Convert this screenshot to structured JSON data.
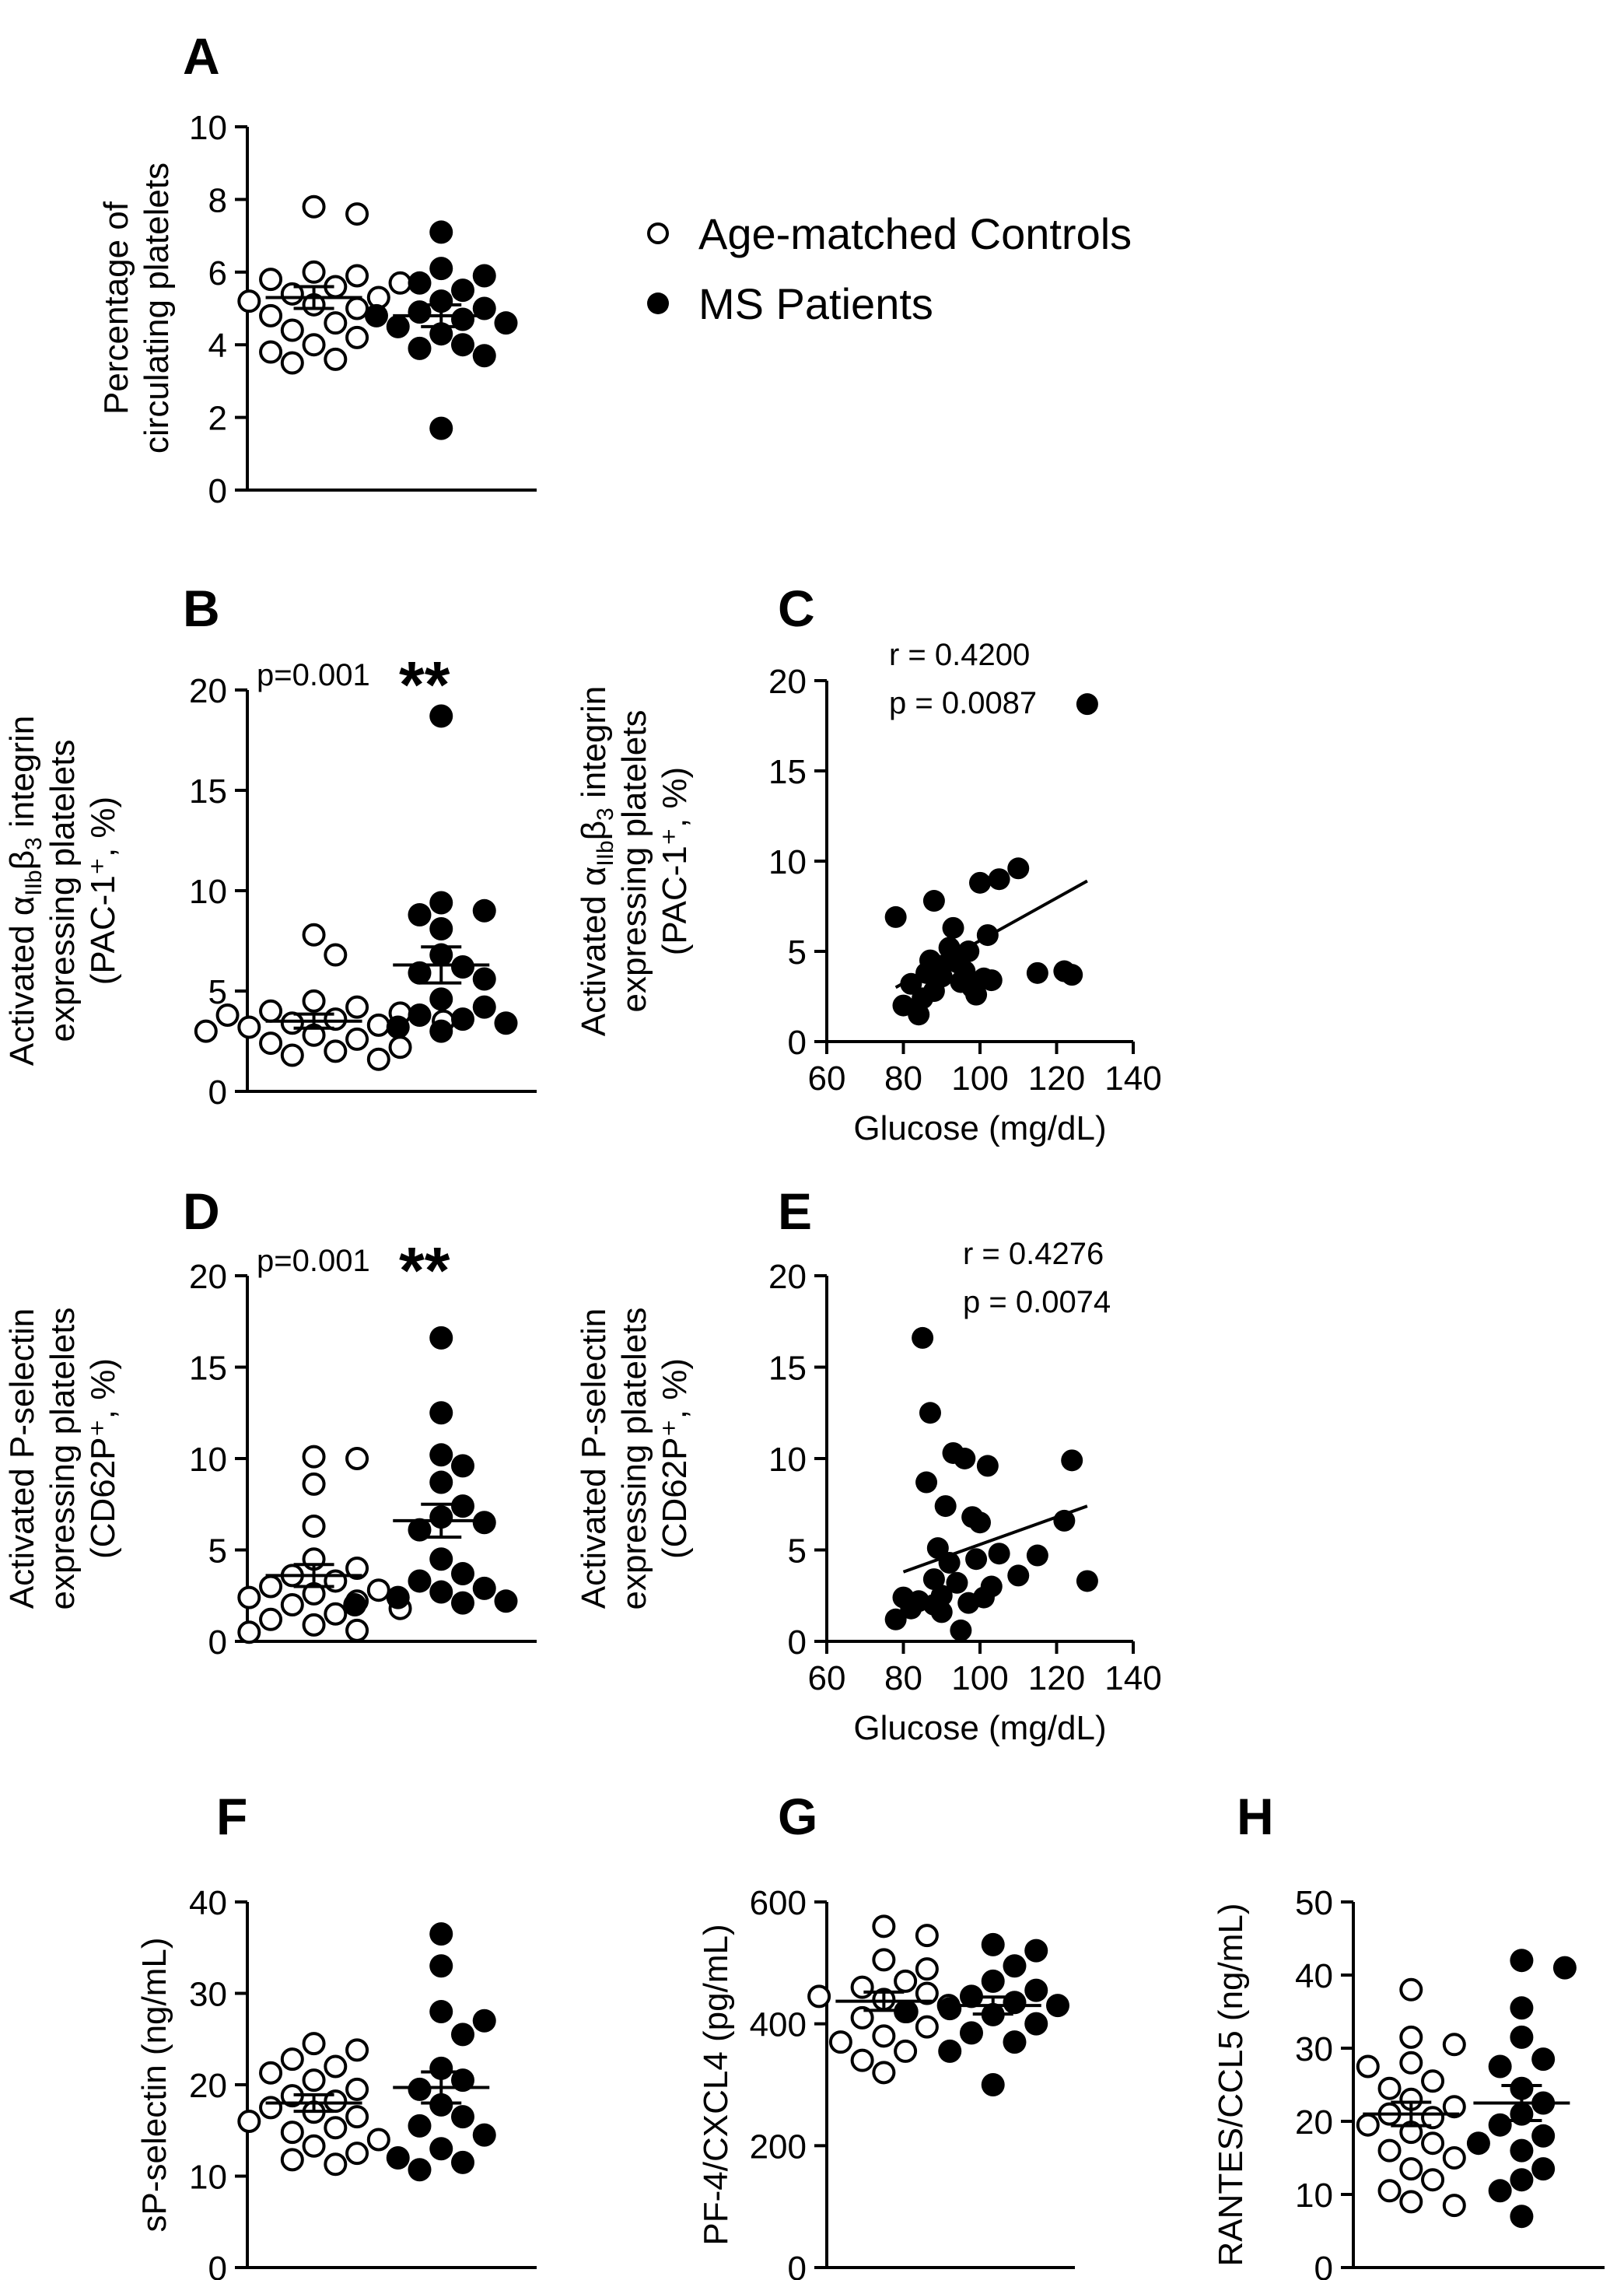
{
  "legend": {
    "controls": "Age-matched Controls",
    "patients": "MS Patients"
  },
  "colors": {
    "ink": "#000000",
    "open_fill": "#ffffff"
  },
  "chart_data": [
    {
      "id": "A",
      "letter": "A",
      "type": "scatter",
      "ylabel_lines": [
        "Percentage of",
        "circulating platelets"
      ],
      "ylim": [
        0,
        10
      ],
      "yticks": [
        "0",
        "2",
        "4",
        "6",
        "8",
        "10"
      ],
      "ytick_values": [
        0,
        2,
        4,
        6,
        8,
        10
      ],
      "series": [
        {
          "name": "Age-matched Controls",
          "marker": "open",
          "values": [
            7.8,
            7.6,
            6.0,
            5.9,
            5.8,
            5.7,
            5.6,
            5.4,
            5.3,
            5.2,
            5.1,
            5.0,
            4.8,
            4.6,
            4.4,
            4.2,
            4.0,
            3.8,
            3.6,
            3.5
          ],
          "mean": 5.3,
          "sem": 0.3
        },
        {
          "name": "MS Patients",
          "marker": "filled",
          "values": [
            7.1,
            6.1,
            5.9,
            5.7,
            5.5,
            5.2,
            5.0,
            4.9,
            4.8,
            4.7,
            4.6,
            4.5,
            4.3,
            4.0,
            3.9,
            3.7,
            1.7
          ],
          "mean": 4.8,
          "sem": 0.3
        }
      ]
    },
    {
      "id": "B",
      "letter": "B",
      "type": "scatter",
      "ylabel_lines": [
        "Activated αIIbβ3 integrin",
        "expressing platelets",
        "(PAC-1⁺, %)"
      ],
      "ylim": [
        0,
        20
      ],
      "yticks": [
        "0",
        "5",
        "10",
        "15",
        "20"
      ],
      "ytick_values": [
        0,
        5,
        10,
        15,
        20
      ],
      "pvalue": "p=0.001",
      "stars": "**",
      "series": [
        {
          "name": "Age-matched Controls",
          "marker": "open",
          "values": [
            7.8,
            6.8,
            4.5,
            4.2,
            4.0,
            3.9,
            3.8,
            3.6,
            3.5,
            3.4,
            3.3,
            3.2,
            3.0,
            2.8,
            2.6,
            2.4,
            2.2,
            2.0,
            1.8,
            1.6
          ],
          "mean": 3.5,
          "sem": 0.35
        },
        {
          "name": "MS Patients",
          "marker": "filled",
          "values": [
            18.7,
            9.4,
            9.0,
            8.8,
            8.1,
            6.8,
            6.2,
            5.9,
            5.6,
            4.6,
            4.2,
            3.8,
            3.6,
            3.4,
            3.2,
            3.0
          ],
          "mean": 6.3,
          "sem": 0.9
        }
      ]
    },
    {
      "id": "C",
      "letter": "C",
      "type": "scatter-fit",
      "ylabel_lines": [
        "Activated αIIbβ3 integrin",
        "expressing platelets",
        "(PAC-1⁺, %)"
      ],
      "xlabel": "Glucose (mg/dL)",
      "xlim": [
        60,
        140
      ],
      "xticks": [
        "60",
        "80",
        "100",
        "120",
        "140"
      ],
      "xtick_values": [
        60,
        80,
        100,
        120,
        140
      ],
      "ylim": [
        0,
        20
      ],
      "yticks": [
        "0",
        "5",
        "10",
        "15",
        "20"
      ],
      "ytick_values": [
        0,
        5,
        10,
        15,
        20
      ],
      "r_text": "r = 0.4200",
      "p_text": "p = 0.0087",
      "fit": {
        "x": [
          78,
          128
        ],
        "y": [
          3.0,
          8.9
        ]
      },
      "points": {
        "x": [
          78,
          80,
          82,
          84,
          85,
          86,
          87,
          88,
          88,
          90,
          90,
          92,
          93,
          94,
          95,
          96,
          97,
          98,
          99,
          100,
          101,
          102,
          103,
          105,
          110,
          115,
          122,
          124,
          128
        ],
        "y": [
          6.9,
          2.0,
          3.2,
          1.5,
          2.4,
          3.8,
          4.5,
          7.8,
          2.8,
          4.2,
          3.6,
          5.2,
          6.3,
          4.4,
          3.3,
          3.9,
          5.0,
          3.0,
          2.6,
          8.8,
          3.5,
          5.9,
          3.4,
          9.0,
          9.6,
          3.8,
          3.9,
          3.7,
          18.7
        ]
      }
    },
    {
      "id": "D",
      "letter": "D",
      "type": "scatter",
      "ylabel_lines": [
        "Activated P-selectin",
        "expressing platelets",
        "(CD62P⁺, %)"
      ],
      "ylim": [
        0,
        20
      ],
      "yticks": [
        "0",
        "5",
        "10",
        "15",
        "20"
      ],
      "ytick_values": [
        0,
        5,
        10,
        15,
        20
      ],
      "pvalue": "p=0.001",
      "stars": "**",
      "series": [
        {
          "name": "Age-matched Controls",
          "marker": "open",
          "values": [
            10.1,
            10.0,
            8.6,
            6.3,
            4.5,
            4.0,
            3.6,
            3.3,
            3.0,
            2.8,
            2.6,
            2.4,
            2.2,
            2.0,
            1.8,
            1.5,
            1.2,
            0.9,
            0.6,
            0.5
          ],
          "mean": 3.6,
          "sem": 0.6
        },
        {
          "name": "MS Patients",
          "marker": "filled",
          "values": [
            16.6,
            12.5,
            10.2,
            9.6,
            8.7,
            7.4,
            6.8,
            6.5,
            6.1,
            4.5,
            3.7,
            3.3,
            2.9,
            2.7,
            2.4,
            2.2,
            2.1,
            2.0
          ],
          "mean": 6.6,
          "sem": 0.9
        }
      ]
    },
    {
      "id": "E",
      "letter": "E",
      "type": "scatter-fit",
      "ylabel_lines": [
        "Activated P-selectin",
        "expressing platelets",
        "(CD62P⁺, %)"
      ],
      "xlabel": "Glucose (mg/dL)",
      "xlim": [
        60,
        140
      ],
      "xticks": [
        "60",
        "80",
        "100",
        "120",
        "140"
      ],
      "xtick_values": [
        60,
        80,
        100,
        120,
        140
      ],
      "ylim": [
        0,
        20
      ],
      "yticks": [
        "0",
        "5",
        "10",
        "15",
        "20"
      ],
      "ytick_values": [
        0,
        5,
        10,
        15,
        20
      ],
      "r_text": "r = 0.4276",
      "p_text": "p = 0.0074",
      "fit": {
        "x": [
          80,
          128
        ],
        "y": [
          3.8,
          7.4
        ]
      },
      "points": {
        "x": [
          78,
          80,
          82,
          84,
          85,
          86,
          87,
          88,
          88,
          89,
          90,
          90,
          91,
          92,
          93,
          94,
          95,
          96,
          97,
          98,
          99,
          100,
          101,
          102,
          103,
          105,
          110,
          115,
          122,
          124,
          128
        ],
        "y": [
          1.2,
          2.4,
          1.8,
          2.2,
          16.6,
          8.7,
          12.5,
          3.4,
          2.0,
          5.1,
          2.5,
          1.6,
          7.4,
          4.3,
          10.3,
          3.2,
          0.6,
          10.0,
          2.1,
          6.8,
          4.5,
          6.5,
          2.4,
          9.6,
          3.0,
          4.8,
          3.6,
          4.7,
          6.6,
          9.9,
          3.3
        ]
      }
    },
    {
      "id": "F",
      "letter": "F",
      "type": "scatter",
      "ylabel_lines": [
        "sP-selectin (ng/mL)"
      ],
      "ylim": [
        0,
        40
      ],
      "yticks": [
        "0",
        "10",
        "20",
        "30",
        "40"
      ],
      "ytick_values": [
        0,
        10,
        20,
        30,
        40
      ],
      "series": [
        {
          "name": "Age-matched Controls",
          "marker": "open",
          "values": [
            24.5,
            23.8,
            22.8,
            22.0,
            21.3,
            20.5,
            19.5,
            18.8,
            18.2,
            17.5,
            17.0,
            16.5,
            16.0,
            15.3,
            14.8,
            14.0,
            13.3,
            12.5,
            11.8,
            11.3
          ],
          "mean": 18.0,
          "sem": 0.9
        },
        {
          "name": "MS Patients",
          "marker": "filled",
          "values": [
            36.5,
            33.0,
            28.0,
            27.0,
            25.5,
            21.8,
            20.5,
            19.5,
            17.8,
            16.5,
            15.5,
            14.5,
            13.0,
            12.0,
            11.5,
            10.7
          ],
          "mean": 19.7,
          "sem": 1.7
        }
      ]
    },
    {
      "id": "G",
      "letter": "G",
      "type": "scatter",
      "ylabel_lines": [
        "PF-4/CXCL4 (pg/mL)"
      ],
      "ylim": [
        0,
        600
      ],
      "yticks": [
        "0",
        "200",
        "400",
        "600"
      ],
      "ytick_values": [
        0,
        200,
        400,
        600
      ],
      "series": [
        {
          "name": "Age-matched Controls",
          "marker": "open",
          "values": [
            560,
            545,
            505,
            490,
            470,
            460,
            450,
            445,
            440,
            430,
            420,
            410,
            395,
            380,
            370,
            355,
            340,
            320
          ],
          "mean": 437,
          "sem": 15
        },
        {
          "name": "MS Patients",
          "marker": "filled",
          "values": [
            530,
            520,
            495,
            470,
            455,
            445,
            435,
            430,
            425,
            420,
            415,
            400,
            385,
            370,
            355,
            300
          ],
          "mean": 430,
          "sem": 14
        }
      ]
    },
    {
      "id": "H",
      "letter": "H",
      "type": "scatter",
      "ylabel_lines": [
        "RANTES/CCL5 (ng/mL)"
      ],
      "ylim": [
        0,
        50
      ],
      "yticks": [
        "0",
        "10",
        "20",
        "30",
        "40",
        "50"
      ],
      "ytick_values": [
        0,
        10,
        20,
        30,
        40,
        50
      ],
      "series": [
        {
          "name": "Age-matched Controls",
          "marker": "open",
          "values": [
            38,
            31.5,
            30.5,
            28,
            27.5,
            25.5,
            24.5,
            23,
            22,
            21,
            20.5,
            19.5,
            18.5,
            17,
            16,
            15,
            13.5,
            12,
            10.5,
            9,
            8.5
          ],
          "mean": 21.0,
          "sem": 1.6
        },
        {
          "name": "MS Patients",
          "marker": "filled",
          "values": [
            42,
            41,
            35.5,
            31.5,
            28.5,
            27.5,
            24.5,
            22.5,
            21,
            19.5,
            18,
            17,
            16,
            13.5,
            12,
            10.5,
            7
          ],
          "mean": 22.5,
          "sem": 2.4
        }
      ]
    }
  ]
}
